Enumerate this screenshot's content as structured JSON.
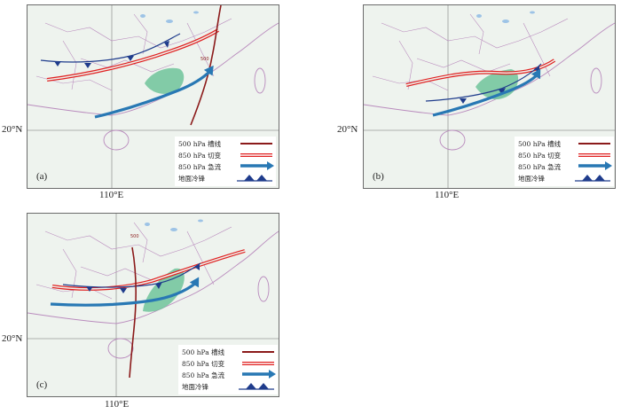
{
  "panels": [
    {
      "label": "(a)",
      "lat_label": "20°N",
      "lon_label": "110°E"
    },
    {
      "label": "(b)",
      "lat_label": "20°N",
      "lon_label": "110°E"
    },
    {
      "label": "(c)",
      "lat_label": "20°N",
      "lon_label": "110°E"
    }
  ],
  "map_labels": {
    "trough_tag": "500"
  },
  "legend": {
    "trough": "500 hPa 槽线",
    "shear": "850 hPa 切变",
    "jet": "850 hPa 急流",
    "front": "地面冷锋"
  },
  "colors": {
    "trough": "#8b1a1a",
    "shear": "#e02020",
    "jet": "#2878b4",
    "front": "#1f3c8c",
    "rain": "#6fc39a",
    "land": "#eef3ee",
    "water": "#9dc3e6",
    "border": "#b98bbd"
  }
}
